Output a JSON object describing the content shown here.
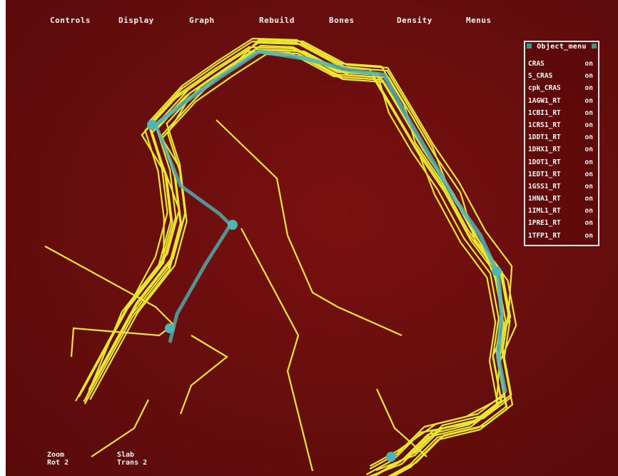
{
  "menubar": {
    "items": [
      {
        "label": "Controls"
      },
      {
        "label": "Display"
      },
      {
        "label": "Graph"
      },
      {
        "label": "Rebuild"
      },
      {
        "label": "Bones"
      },
      {
        "label": "Density"
      },
      {
        "label": "Menus"
      }
    ]
  },
  "object_menu": {
    "title": "Object_menu",
    "items": [
      {
        "name": "CRAS",
        "state": "on"
      },
      {
        "name": "S_CRAS",
        "state": "on"
      },
      {
        "name": "cpk_CRAS",
        "state": "on"
      },
      {
        "name": "1AGW1_RT",
        "state": "on"
      },
      {
        "name": "1CBI1_RT",
        "state": "on"
      },
      {
        "name": "1CRS1_RT",
        "state": "on"
      },
      {
        "name": "1DDT1_RT",
        "state": "on"
      },
      {
        "name": "1DHX1_RT",
        "state": "on"
      },
      {
        "name": "1DOT1_RT",
        "state": "on"
      },
      {
        "name": "1EDT1_RT",
        "state": "on"
      },
      {
        "name": "1GSS1_RT",
        "state": "on"
      },
      {
        "name": "1HNA1_RT",
        "state": "on"
      },
      {
        "name": "1IML1_RT",
        "state": "on"
      },
      {
        "name": "1PRE1_RT",
        "state": "on"
      },
      {
        "name": "1TFP1_RT",
        "state": "on"
      }
    ]
  },
  "status": {
    "zoom": "Zoom",
    "slab": "Slab",
    "rot": "Rot 2",
    "trans": "Trans 2"
  },
  "colors": {
    "background": "#6a0e0e",
    "trace": "#e8e832",
    "highlight": "#4fb4b4",
    "text": "#f2f2f2"
  },
  "icons": [
    "object-menu-corner-icon"
  ]
}
